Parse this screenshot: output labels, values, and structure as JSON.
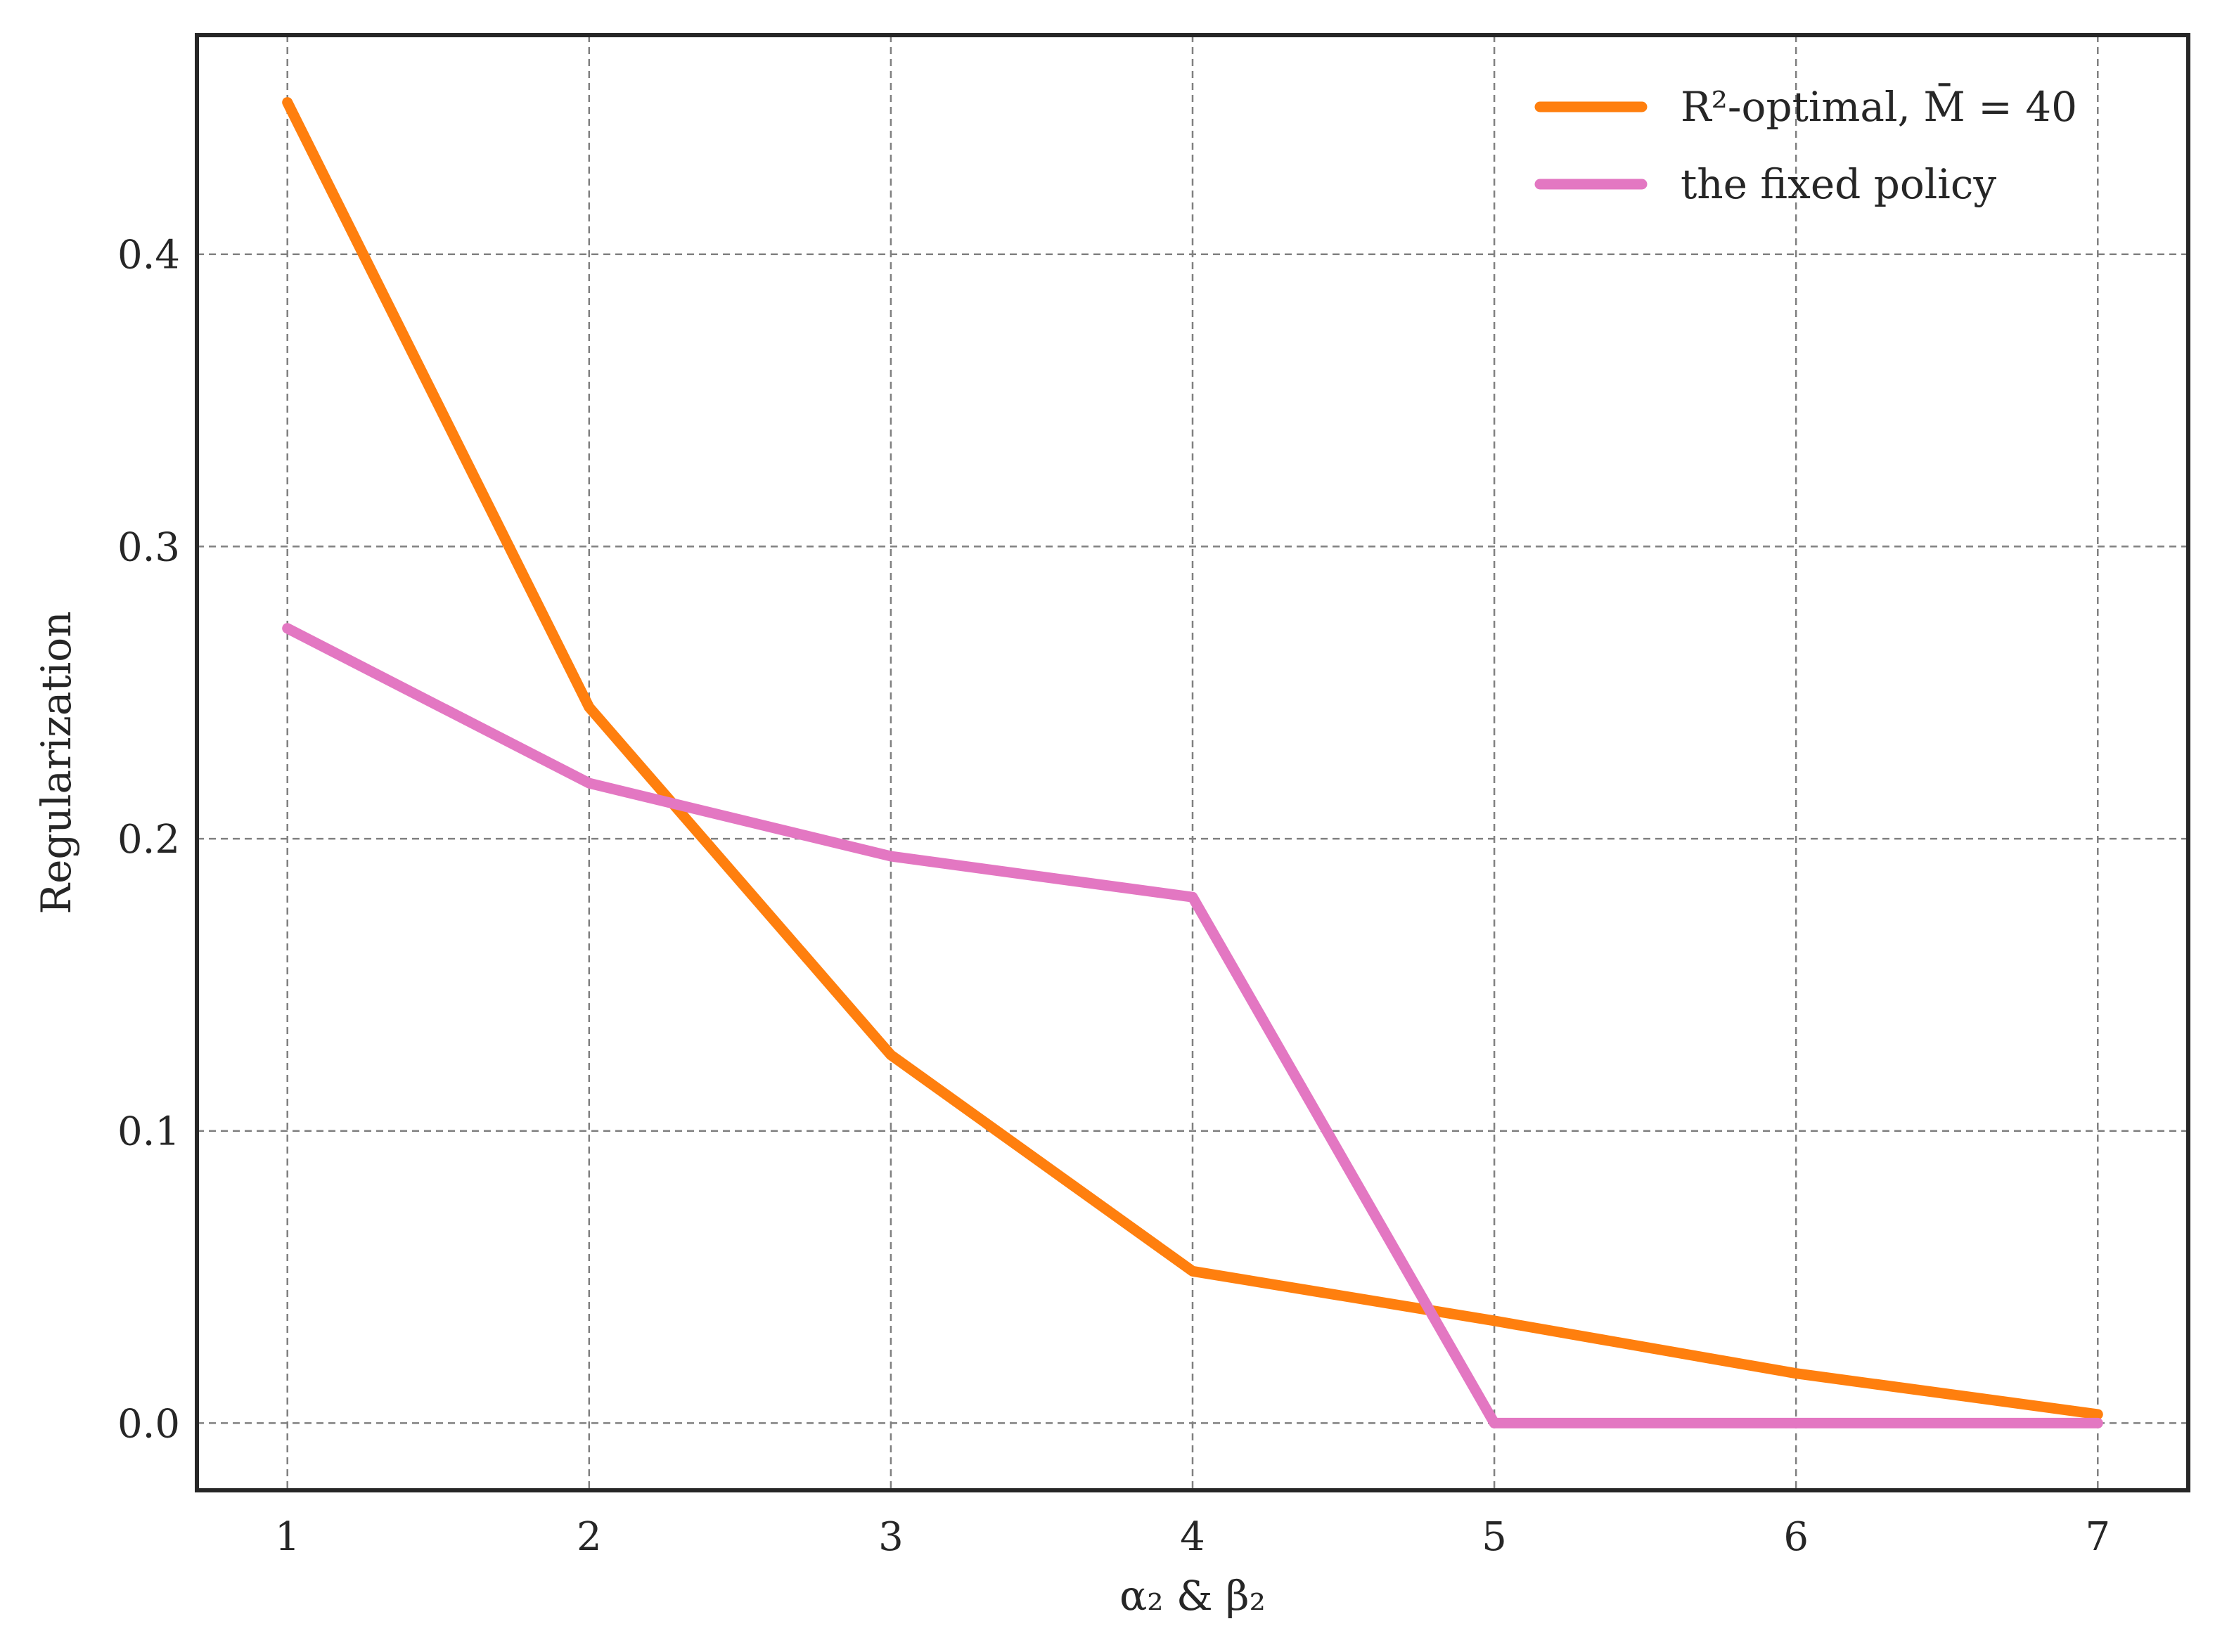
{
  "chart_data": {
    "type": "line",
    "xlabel": "α₂ & β₂",
    "ylabel": "Regularization",
    "x": [
      1,
      2,
      3,
      4,
      5,
      6,
      7
    ],
    "xlim": [
      0.7,
      7.3
    ],
    "ylim": [
      -0.023,
      0.475
    ],
    "xticks": [
      "1",
      "2",
      "3",
      "4",
      "5",
      "6",
      "7"
    ],
    "yticks": [
      "0.0",
      "0.1",
      "0.2",
      "0.3",
      "0.4"
    ],
    "grid": true,
    "legend_position": "top-right",
    "series": [
      {
        "name": "R²-optimal, M̄ = 40",
        "color": "#ff7f0e",
        "values": [
          0.452,
          0.245,
          0.126,
          0.052,
          0.035,
          0.017,
          0.003
        ]
      },
      {
        "name": "the fixed policy",
        "color": "#e377c2",
        "values": [
          0.272,
          0.219,
          0.194,
          0.18,
          0.0,
          0.0,
          0.0
        ]
      }
    ]
  }
}
